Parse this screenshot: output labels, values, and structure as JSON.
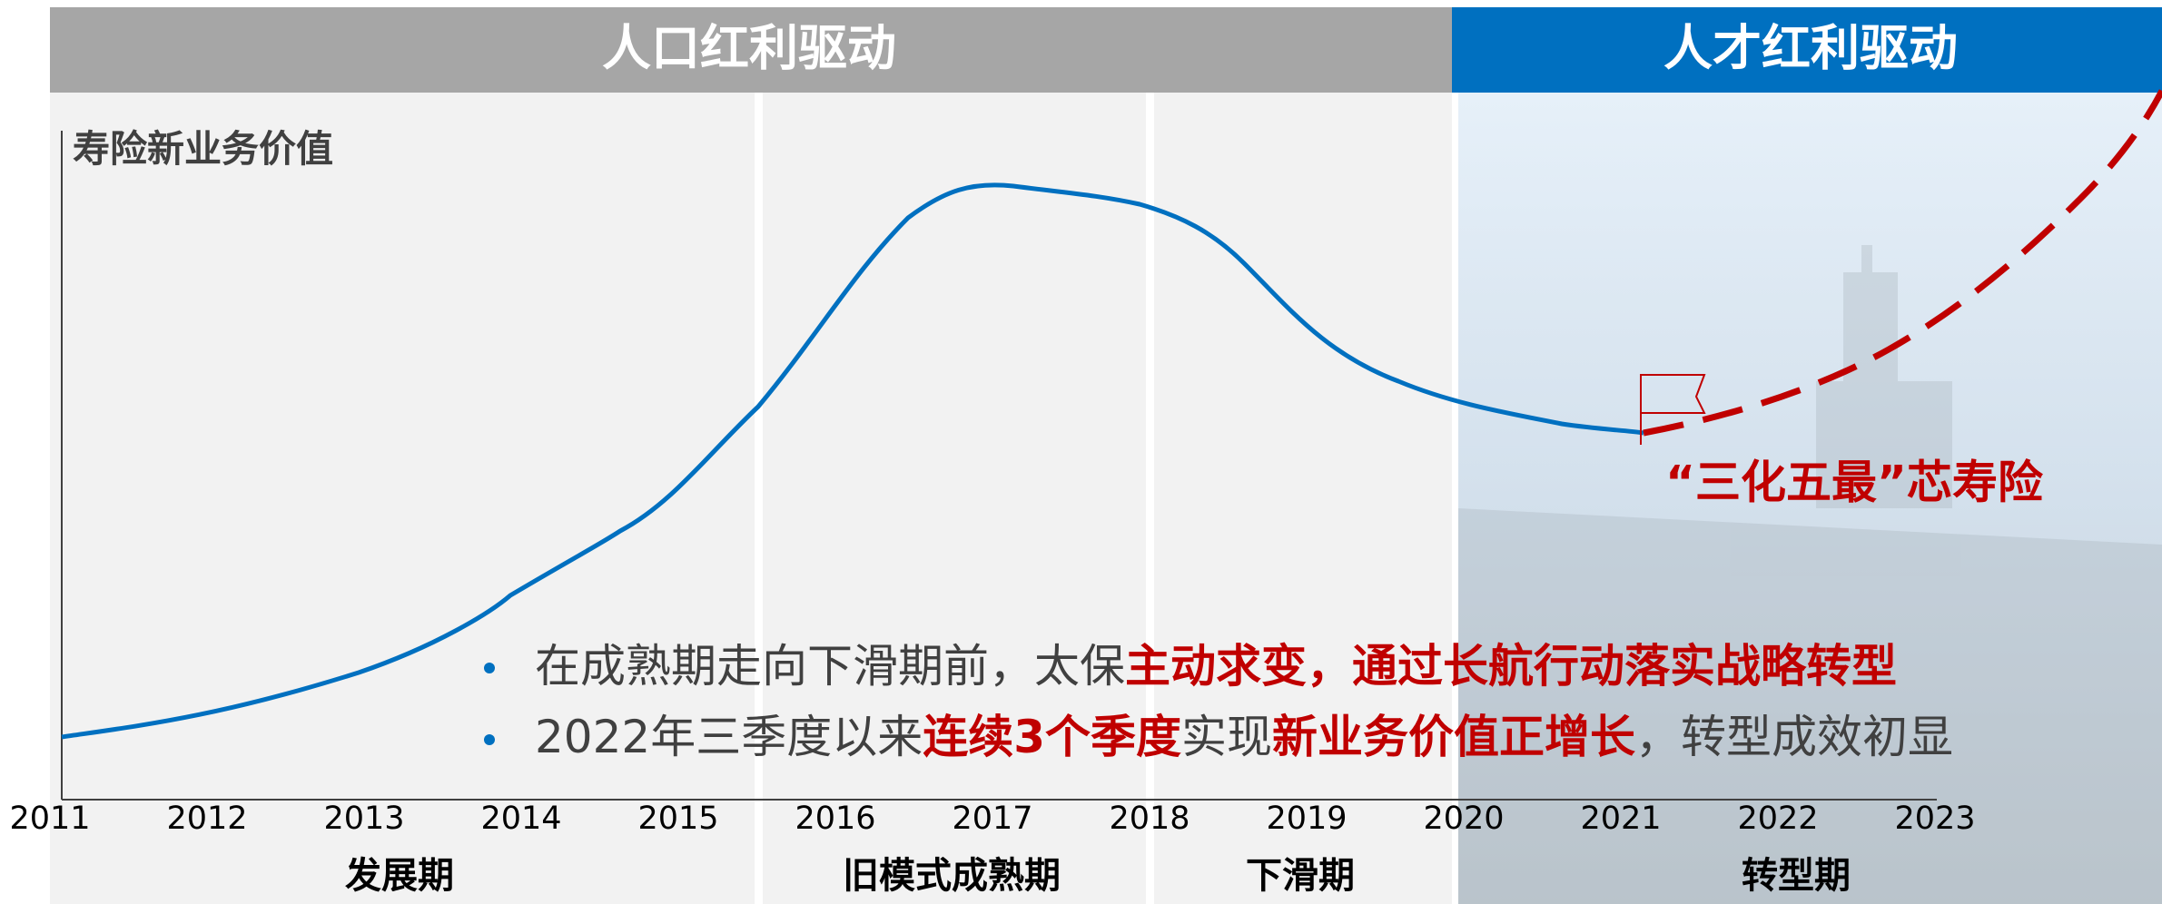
{
  "banners": {
    "left": "人口红利驱动",
    "right": "人才红利驱动"
  },
  "axis_title": "寿险新业务价值",
  "years": [
    "2011",
    "2012",
    "2013",
    "2014",
    "2015",
    "2016",
    "2017",
    "2018",
    "2019",
    "2020",
    "2021",
    "2022",
    "2023"
  ],
  "phases": [
    "发展期",
    "旧模式成熟期",
    "下滑期",
    "转型期"
  ],
  "annotation": "“三化五最”芯寿险",
  "bullets": [
    [
      "在成熟期走向下滑期前，太保",
      "主动求变，通过长航行动落实战略转型"
    ],
    [
      "2022年三季度以来",
      "连续3个季度",
      "实现",
      "新业务价值正增长",
      "，转型成效初显"
    ]
  ]
}
